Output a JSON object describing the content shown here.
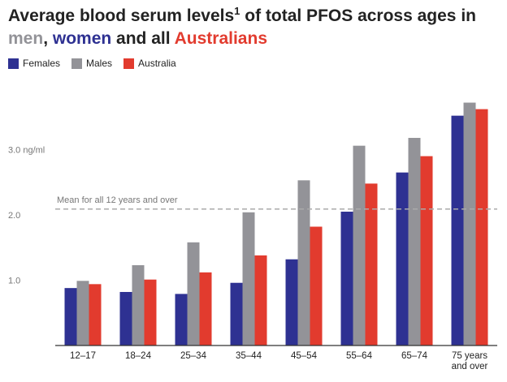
{
  "title": {
    "line1_before": "Average blood serum levels",
    "sup": "1",
    "line1_after": " of total PFOS across ages in",
    "men": "men",
    "comma": ", ",
    "women": "women",
    "and_all": " and all ",
    "australians": "Australians"
  },
  "colors": {
    "females": "#2e3192",
    "males": "#939398",
    "australia": "#e23b2e",
    "reference": "#aaaaaa",
    "text": "#222222"
  },
  "chart_data": {
    "type": "bar",
    "categories": [
      "12–17",
      "18–24",
      "25–34",
      "35–44",
      "45–54",
      "55–64",
      "65–74",
      "75 years and over"
    ],
    "series": [
      {
        "name": "Females",
        "values": [
          0.88,
          0.82,
          0.79,
          0.96,
          1.32,
          2.05,
          2.65,
          3.52
        ]
      },
      {
        "name": "Males",
        "values": [
          0.99,
          1.23,
          1.58,
          2.04,
          2.53,
          3.06,
          3.18,
          3.72
        ]
      },
      {
        "name": "Australia",
        "values": [
          0.94,
          1.01,
          1.12,
          1.38,
          1.82,
          2.48,
          2.9,
          3.62
        ]
      }
    ],
    "yticks": [
      {
        "value": 1.0,
        "label": "1.0"
      },
      {
        "value": 2.0,
        "label": "2.0"
      },
      {
        "value": 3.0,
        "label": "3.0 ng/ml"
      }
    ],
    "reference_line": {
      "value": 2.09,
      "label": "Mean for all 12 years and over"
    },
    "ylim": [
      0,
      3.8
    ],
    "legend_position": "top-left",
    "grid": false
  }
}
